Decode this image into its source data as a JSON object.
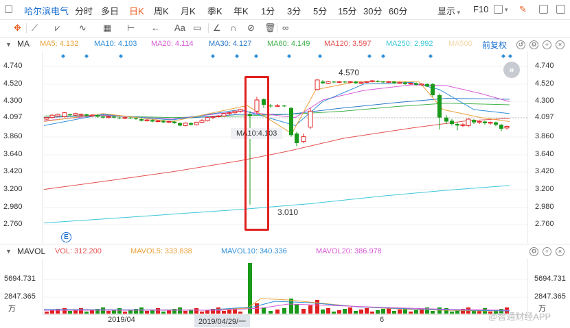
{
  "topbar": {
    "stock_name": "哈尔滨电气",
    "tabs": [
      "分时",
      "多日",
      "日K",
      "周K",
      "月K",
      "季K",
      "年K",
      "1分",
      "3分",
      "5分",
      "15分",
      "30分",
      "60分"
    ],
    "active_tab": "日K",
    "display_label": "显示",
    "f10_label": "F10"
  },
  "toolbar2": {
    "text_tool_label": "Aa"
  },
  "ma_legend": {
    "title": "MA",
    "items": [
      {
        "label": "MA5: 4.132",
        "color": "#e8a23b"
      },
      {
        "label": "MA10: 4.103",
        "color": "#2f8fd8"
      },
      {
        "label": "MA20: 4.114",
        "color": "#d65ad6"
      },
      {
        "label": "MA30: 4.127",
        "color": "#2a79c9"
      },
      {
        "label": "MA60: 4.149",
        "color": "#3fb04a"
      },
      {
        "label": "MA120: 3.597",
        "color": "#e45050"
      },
      {
        "label": "MA250: 2.992",
        "color": "#3cc8d8"
      },
      {
        "label": "MA500",
        "color": "#f3d7a8"
      }
    ],
    "adjust_label": "前复权"
  },
  "price_axis": {
    "labels": [
      "4.740",
      "4.520",
      "4.300",
      "4.097",
      "3.860",
      "3.640",
      "3.420",
      "3.200",
      "2.980",
      "2.760"
    ]
  },
  "annotations": {
    "high_label": "4.570",
    "low_label": "3.010",
    "tooltip": "MA10:4.103"
  },
  "vol_legend": {
    "title": "MAVOL",
    "items": [
      {
        "label": "VOL: 312.200",
        "color": "#e45050"
      },
      {
        "label": "MAVOL5: 333.838",
        "color": "#e8a23b"
      },
      {
        "label": "MAVOL10: 340.336",
        "color": "#2f8fd8"
      },
      {
        "label": "MAVOL20: 386.978",
        "color": "#d65ad6"
      }
    ]
  },
  "vol_axis": {
    "labels": [
      "5694.731",
      "2847.365"
    ],
    "unit": "万"
  },
  "date_axis": {
    "labels": [
      "2019/04",
      "2019/04/29/一",
      "6"
    ]
  },
  "watermark": "@智通财经APP",
  "colors": {
    "up": "#e02020",
    "down": "#1a9a1a",
    "accent": "#e8591a",
    "link": "#1a6fd1",
    "highlight_box": "#e02020"
  }
}
